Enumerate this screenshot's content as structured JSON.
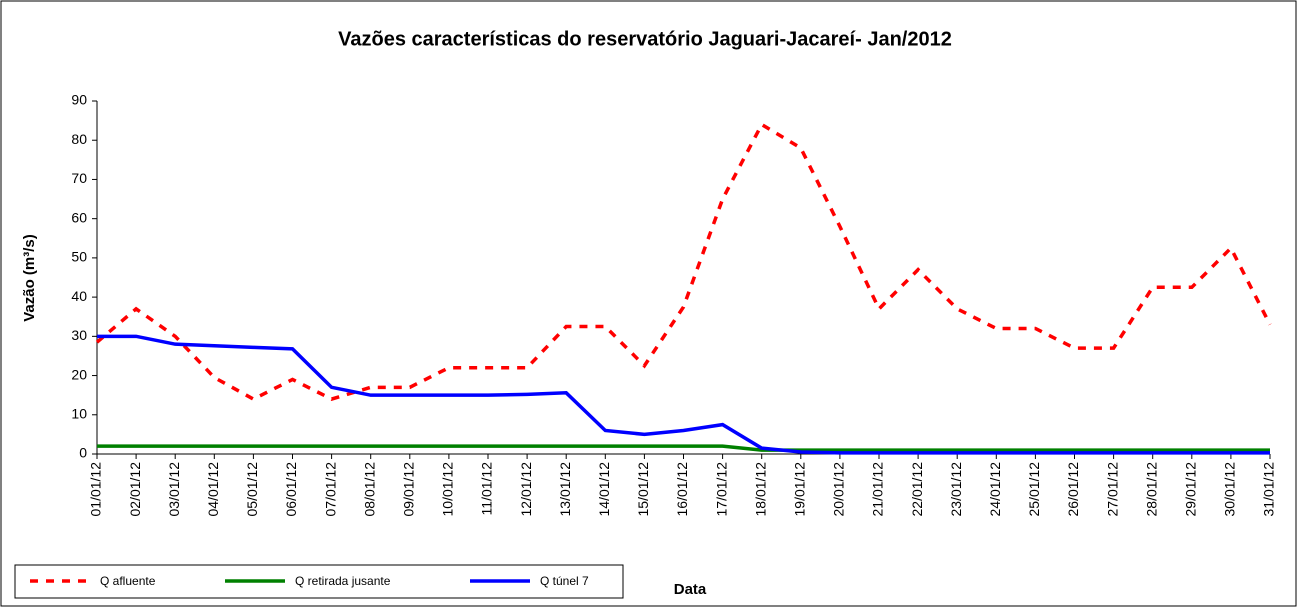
{
  "chart_data": {
    "type": "line",
    "title": "Vazões características do reservatório Jaguari-Jacareí- Jan/2012",
    "x_label": "Data",
    "y_label": "Vazão (m³/s)",
    "categories": [
      "01/01/12",
      "02/01/12",
      "03/01/12",
      "04/01/12",
      "05/01/12",
      "06/01/12",
      "07/01/12",
      "08/01/12",
      "09/01/12",
      "10/01/12",
      "11/01/12",
      "12/01/12",
      "13/01/12",
      "14/01/12",
      "15/01/12",
      "16/01/12",
      "17/01/12",
      "18/01/12",
      "19/01/12",
      "20/01/12",
      "21/01/12",
      "22/01/12",
      "23/01/12",
      "24/01/12",
      "25/01/12",
      "26/01/12",
      "27/01/12",
      "28/01/12",
      "29/01/12",
      "30/01/12",
      "31/01/12"
    ],
    "series": [
      {
        "name": "Q afluente",
        "color": "#ff0000",
        "style": "dashed",
        "values": [
          28.5,
          37,
          30,
          19.5,
          14,
          19,
          14,
          17,
          17,
          22,
          22,
          22,
          32.5,
          32.5,
          22.5,
          37.5,
          65,
          84,
          78,
          58,
          37,
          47,
          37,
          32,
          32,
          27,
          27,
          42.5,
          42.5,
          52.5,
          33
        ]
      },
      {
        "name": "Q retirada jusante",
        "color": "#008000",
        "style": "solid",
        "values": [
          2,
          2,
          2,
          2,
          2,
          2,
          2,
          2,
          2,
          2,
          2,
          2,
          2,
          2,
          2,
          2,
          2,
          1,
          1,
          1,
          1,
          1,
          1,
          1,
          1,
          1,
          1,
          1,
          1,
          1,
          1
        ]
      },
      {
        "name": "Q túnel 7",
        "color": "#0000ff",
        "style": "solid",
        "values": [
          30,
          30,
          28,
          27.6,
          27.2,
          26.8,
          17,
          15,
          15,
          15,
          15,
          15.2,
          15.6,
          6,
          5,
          6,
          7.5,
          1.5,
          0.5,
          0.3,
          0.3,
          0.3,
          0.3,
          0.3,
          0.3,
          0.3,
          0.3,
          0.3,
          0.3,
          0.3,
          0.3
        ]
      }
    ],
    "ylim": [
      0,
      90
    ],
    "yticks": [
      0,
      10,
      20,
      30,
      40,
      50,
      60,
      70,
      80,
      90
    ]
  }
}
